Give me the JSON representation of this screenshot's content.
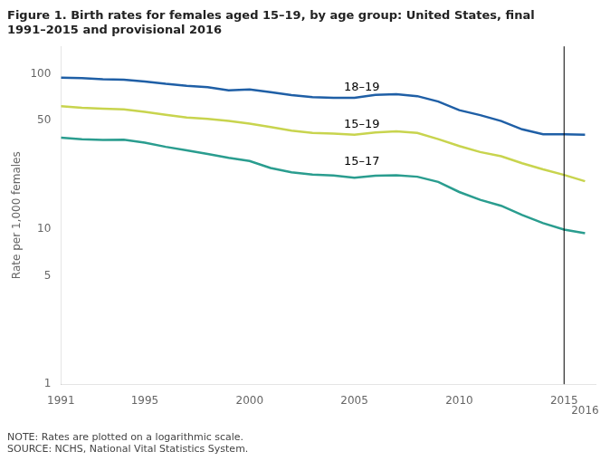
{
  "chart_data": {
    "type": "line",
    "title": [
      "Figure 1. Birth rates for females aged 15–19, by age group: United States, final",
      "1991–2015 and provisional 2016"
    ],
    "note": [
      "NOTE: Rates are plotted on a logarithmic scale.",
      "SOURCE: NCHS, National Vital Statistics System."
    ],
    "y_label": "Rate per 1,000 females",
    "x": [
      1991,
      1992,
      1993,
      1994,
      1995,
      1996,
      1997,
      1998,
      1999,
      2000,
      2001,
      2002,
      2003,
      2004,
      2005,
      2006,
      2007,
      2008,
      2009,
      2010,
      2011,
      2012,
      2013,
      2014,
      2015,
      2016
    ],
    "series": [
      {
        "color": "#1f5fa6",
        "values": [
          94.4,
          93.6,
          92.1,
          91.5,
          89.1,
          86.0,
          83.6,
          82.0,
          78.1,
          79.2,
          76.1,
          72.8,
          70.7,
          70.0,
          69.9,
          73.0,
          73.9,
          71.7,
          66.2,
          58.2,
          54.1,
          49.6,
          43.8,
          40.7,
          40.7,
          40.5
        ]
      },
      {
        "color": "#c8d44e",
        "values": [
          61.8,
          60.3,
          59.6,
          58.9,
          56.8,
          54.4,
          52.3,
          51.1,
          49.6,
          47.7,
          45.3,
          43.0,
          41.6,
          41.1,
          40.5,
          41.9,
          42.5,
          41.5,
          37.9,
          34.2,
          31.3,
          29.4,
          26.5,
          24.2,
          22.3,
          20.3
        ]
      },
      {
        "color": "#2a9d8f",
        "values": [
          38.7,
          37.8,
          37.5,
          37.6,
          36.0,
          33.8,
          32.1,
          30.4,
          28.7,
          27.4,
          24.7,
          23.2,
          22.4,
          22.1,
          21.4,
          22.0,
          22.2,
          21.7,
          20.1,
          17.3,
          15.4,
          14.1,
          12.3,
          10.9,
          9.9,
          9.4
        ]
      }
    ],
    "log": "y",
    "xlim": [
      1991,
      2016.5
    ],
    "xticks": [
      1991,
      1995,
      2000,
      2005,
      2010,
      2015
    ],
    "ylim": [
      1,
      150
    ],
    "yticks": [
      1,
      5,
      10,
      50,
      100
    ],
    "grid": false,
    "annotations": [
      {
        "text": "18–19",
        "x": 2004.5,
        "y": 82
      },
      {
        "text": "15–19",
        "x": 2004.5,
        "y": 47
      },
      {
        "text": "15–17",
        "x": 2004.5,
        "y": 27
      },
      {
        "text": "2016",
        "x": 2016,
        "below_axis": true
      },
      {
        "type": "vline",
        "x": 2015,
        "color": "black"
      }
    ]
  }
}
